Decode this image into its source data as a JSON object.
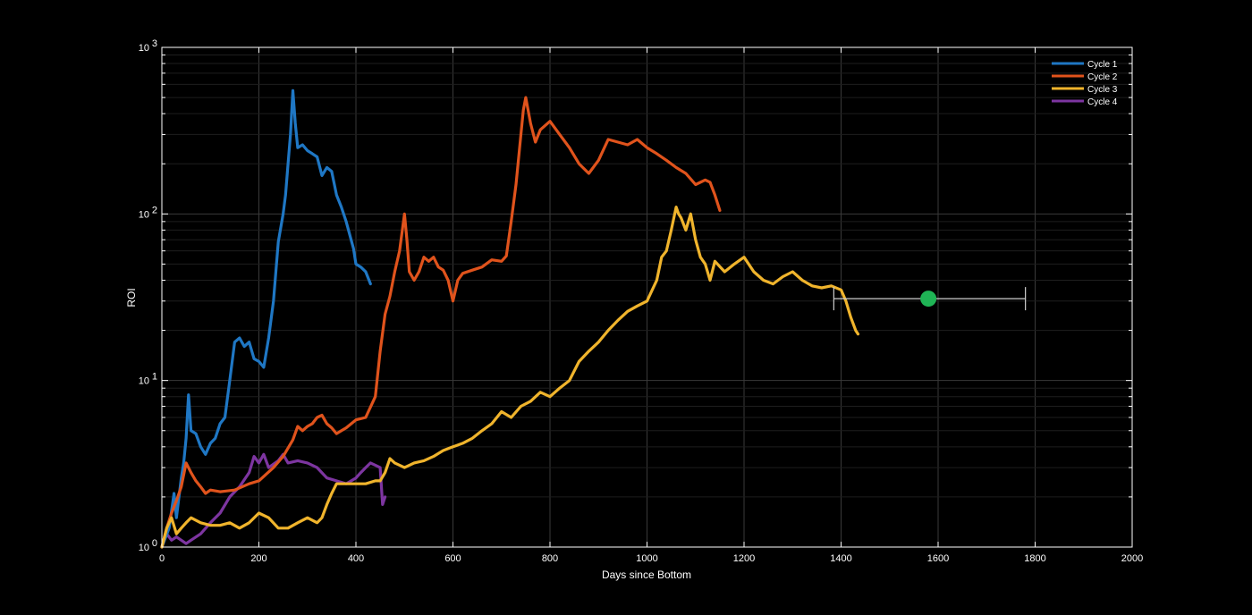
{
  "chart_data": {
    "type": "line",
    "title": "",
    "xlabel": "Days since Bottom",
    "ylabel": "ROI",
    "xlim": [
      0,
      2000
    ],
    "ylim": [
      1,
      1000
    ],
    "yscale": "log",
    "grid": true,
    "legend_position": "top-right",
    "background": "#000000",
    "x_ticks": [
      "0",
      "200",
      "400",
      "600",
      "800",
      "1000",
      "1200",
      "1400",
      "1600",
      "1800",
      "2000"
    ],
    "y_ticks": [
      {
        "base": "10",
        "exp": "0"
      },
      {
        "base": "10",
        "exp": "1"
      },
      {
        "base": "10",
        "exp": "2"
      },
      {
        "base": "10",
        "exp": "3"
      }
    ],
    "series": [
      {
        "name": "Cycle 1",
        "color": "#1f77c4",
        "points": [
          [
            0,
            1.0
          ],
          [
            15,
            1.3
          ],
          [
            25,
            2.1
          ],
          [
            30,
            1.5
          ],
          [
            40,
            2.6
          ],
          [
            45,
            3.2
          ],
          [
            50,
            4.5
          ],
          [
            55,
            8.2
          ],
          [
            60,
            5.0
          ],
          [
            70,
            4.8
          ],
          [
            80,
            4.0
          ],
          [
            90,
            3.6
          ],
          [
            100,
            4.2
          ],
          [
            110,
            4.5
          ],
          [
            120,
            5.5
          ],
          [
            130,
            6.0
          ],
          [
            140,
            10
          ],
          [
            150,
            17
          ],
          [
            160,
            18
          ],
          [
            170,
            16
          ],
          [
            180,
            17
          ],
          [
            190,
            13.5
          ],
          [
            200,
            13
          ],
          [
            210,
            12
          ],
          [
            220,
            18
          ],
          [
            230,
            30
          ],
          [
            240,
            68
          ],
          [
            250,
            100
          ],
          [
            255,
            130
          ],
          [
            260,
            200
          ],
          [
            265,
            300
          ],
          [
            270,
            550
          ],
          [
            275,
            350
          ],
          [
            280,
            250
          ],
          [
            290,
            260
          ],
          [
            300,
            240
          ],
          [
            310,
            230
          ],
          [
            320,
            220
          ],
          [
            330,
            170
          ],
          [
            340,
            190
          ],
          [
            350,
            180
          ],
          [
            360,
            130
          ],
          [
            370,
            110
          ],
          [
            380,
            90
          ],
          [
            390,
            70
          ],
          [
            395,
            62
          ],
          [
            400,
            50
          ],
          [
            410,
            48
          ],
          [
            420,
            45
          ],
          [
            430,
            38
          ]
        ]
      },
      {
        "name": "Cycle 2",
        "color": "#e0531c",
        "points": [
          [
            0,
            1.0
          ],
          [
            10,
            1.3
          ],
          [
            20,
            1.6
          ],
          [
            30,
            1.9
          ],
          [
            40,
            2.3
          ],
          [
            50,
            3.2
          ],
          [
            60,
            2.8
          ],
          [
            70,
            2.5
          ],
          [
            80,
            2.3
          ],
          [
            90,
            2.1
          ],
          [
            100,
            2.2
          ],
          [
            120,
            2.15
          ],
          [
            150,
            2.2
          ],
          [
            180,
            2.4
          ],
          [
            200,
            2.5
          ],
          [
            230,
            3.0
          ],
          [
            250,
            3.5
          ],
          [
            270,
            4.4
          ],
          [
            280,
            5.3
          ],
          [
            290,
            5.0
          ],
          [
            300,
            5.3
          ],
          [
            310,
            5.5
          ],
          [
            320,
            6.0
          ],
          [
            330,
            6.2
          ],
          [
            340,
            5.5
          ],
          [
            350,
            5.2
          ],
          [
            360,
            4.8
          ],
          [
            380,
            5.2
          ],
          [
            400,
            5.8
          ],
          [
            420,
            6.0
          ],
          [
            440,
            8.0
          ],
          [
            450,
            15
          ],
          [
            460,
            25
          ],
          [
            470,
            32
          ],
          [
            480,
            45
          ],
          [
            490,
            60
          ],
          [
            500,
            100
          ],
          [
            505,
            70
          ],
          [
            510,
            45
          ],
          [
            520,
            40
          ],
          [
            530,
            45
          ],
          [
            540,
            55
          ],
          [
            550,
            52
          ],
          [
            560,
            55
          ],
          [
            570,
            48
          ],
          [
            580,
            46
          ],
          [
            590,
            40
          ],
          [
            600,
            30
          ],
          [
            610,
            40
          ],
          [
            620,
            44
          ],
          [
            640,
            46
          ],
          [
            660,
            48
          ],
          [
            680,
            53
          ],
          [
            700,
            52
          ],
          [
            710,
            56
          ],
          [
            720,
            90
          ],
          [
            730,
            150
          ],
          [
            740,
            300
          ],
          [
            745,
            420
          ],
          [
            750,
            500
          ],
          [
            760,
            350
          ],
          [
            770,
            270
          ],
          [
            780,
            320
          ],
          [
            800,
            360
          ],
          [
            820,
            300
          ],
          [
            840,
            250
          ],
          [
            860,
            200
          ],
          [
            880,
            175
          ],
          [
            900,
            210
          ],
          [
            920,
            280
          ],
          [
            940,
            270
          ],
          [
            960,
            260
          ],
          [
            980,
            280
          ],
          [
            1000,
            250
          ],
          [
            1020,
            230
          ],
          [
            1040,
            210
          ],
          [
            1060,
            190
          ],
          [
            1080,
            175
          ],
          [
            1100,
            150
          ],
          [
            1120,
            160
          ],
          [
            1130,
            155
          ],
          [
            1140,
            130
          ],
          [
            1150,
            105
          ]
        ]
      },
      {
        "name": "Cycle 3",
        "color": "#f0b42c",
        "points": [
          [
            0,
            1.0
          ],
          [
            10,
            1.3
          ],
          [
            20,
            1.5
          ],
          [
            30,
            1.2
          ],
          [
            40,
            1.3
          ],
          [
            50,
            1.4
          ],
          [
            60,
            1.5
          ],
          [
            80,
            1.4
          ],
          [
            100,
            1.35
          ],
          [
            120,
            1.35
          ],
          [
            140,
            1.4
          ],
          [
            160,
            1.3
          ],
          [
            180,
            1.4
          ],
          [
            200,
            1.6
          ],
          [
            220,
            1.5
          ],
          [
            240,
            1.3
          ],
          [
            260,
            1.3
          ],
          [
            280,
            1.4
          ],
          [
            300,
            1.5
          ],
          [
            320,
            1.4
          ],
          [
            330,
            1.5
          ],
          [
            340,
            1.8
          ],
          [
            350,
            2.1
          ],
          [
            360,
            2.4
          ],
          [
            380,
            2.4
          ],
          [
            400,
            2.4
          ],
          [
            420,
            2.4
          ],
          [
            440,
            2.5
          ],
          [
            450,
            2.5
          ],
          [
            460,
            2.8
          ],
          [
            470,
            3.4
          ],
          [
            480,
            3.2
          ],
          [
            490,
            3.1
          ],
          [
            500,
            3.0
          ],
          [
            520,
            3.2
          ],
          [
            540,
            3.3
          ],
          [
            560,
            3.5
          ],
          [
            580,
            3.8
          ],
          [
            600,
            4.0
          ],
          [
            620,
            4.2
          ],
          [
            640,
            4.5
          ],
          [
            660,
            5.0
          ],
          [
            680,
            5.5
          ],
          [
            700,
            6.5
          ],
          [
            720,
            6.0
          ],
          [
            740,
            7.0
          ],
          [
            760,
            7.5
          ],
          [
            780,
            8.5
          ],
          [
            800,
            8.0
          ],
          [
            820,
            9.0
          ],
          [
            840,
            10
          ],
          [
            860,
            13
          ],
          [
            880,
            15
          ],
          [
            900,
            17
          ],
          [
            920,
            20
          ],
          [
            940,
            23
          ],
          [
            960,
            26
          ],
          [
            980,
            28
          ],
          [
            1000,
            30
          ],
          [
            1020,
            40
          ],
          [
            1030,
            55
          ],
          [
            1040,
            60
          ],
          [
            1050,
            80
          ],
          [
            1060,
            110
          ],
          [
            1065,
            100
          ],
          [
            1070,
            95
          ],
          [
            1080,
            80
          ],
          [
            1090,
            100
          ],
          [
            1100,
            70
          ],
          [
            1110,
            55
          ],
          [
            1120,
            50
          ],
          [
            1130,
            40
          ],
          [
            1140,
            52
          ],
          [
            1160,
            45
          ],
          [
            1180,
            50
          ],
          [
            1200,
            55
          ],
          [
            1220,
            45
          ],
          [
            1240,
            40
          ],
          [
            1260,
            38
          ],
          [
            1280,
            42
          ],
          [
            1300,
            45
          ],
          [
            1320,
            40
          ],
          [
            1340,
            37
          ],
          [
            1360,
            36
          ],
          [
            1380,
            37
          ],
          [
            1400,
            35
          ],
          [
            1410,
            30
          ],
          [
            1420,
            24
          ],
          [
            1430,
            20
          ],
          [
            1435,
            19
          ]
        ]
      },
      {
        "name": "Cycle 4",
        "color": "#7d35a0",
        "points": [
          [
            0,
            1.0
          ],
          [
            10,
            1.2
          ],
          [
            20,
            1.1
          ],
          [
            30,
            1.15
          ],
          [
            40,
            1.1
          ],
          [
            50,
            1.05
          ],
          [
            60,
            1.1
          ],
          [
            80,
            1.2
          ],
          [
            100,
            1.4
          ],
          [
            120,
            1.6
          ],
          [
            140,
            2.0
          ],
          [
            160,
            2.3
          ],
          [
            180,
            2.8
          ],
          [
            190,
            3.5
          ],
          [
            200,
            3.2
          ],
          [
            210,
            3.6
          ],
          [
            220,
            3.0
          ],
          [
            240,
            3.3
          ],
          [
            250,
            3.6
          ],
          [
            260,
            3.2
          ],
          [
            280,
            3.3
          ],
          [
            300,
            3.2
          ],
          [
            320,
            3.0
          ],
          [
            340,
            2.6
          ],
          [
            360,
            2.5
          ],
          [
            380,
            2.4
          ],
          [
            400,
            2.6
          ],
          [
            410,
            2.8
          ],
          [
            420,
            3.0
          ],
          [
            430,
            3.2
          ],
          [
            440,
            3.1
          ],
          [
            450,
            3.0
          ],
          [
            455,
            1.8
          ],
          [
            460,
            2.0
          ]
        ]
      }
    ],
    "errorbar": {
      "x": 1580,
      "y": 31,
      "xmin": 1385,
      "xmax": 1780,
      "marker_color": "#1fb455",
      "line_color": "#cfcfcf"
    }
  }
}
